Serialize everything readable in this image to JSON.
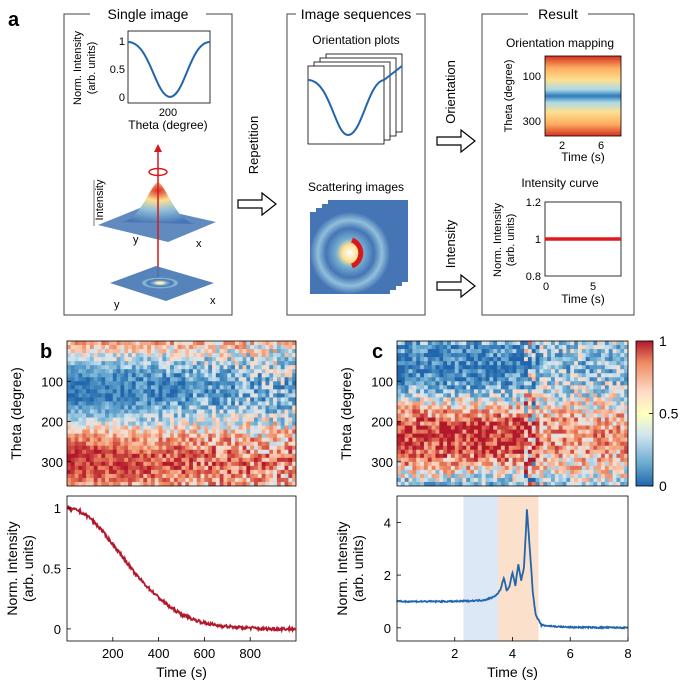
{
  "panel_labels": {
    "a": "a",
    "b": "b",
    "c": "c"
  },
  "panel_a": {
    "single_image": {
      "header": "Single image",
      "inset_ylabel_1": "Norm. Intensity",
      "inset_ylabel_2": "(arb. units)",
      "inset_xlabel": "Theta (degree)",
      "inset_yticks": [
        "1",
        "0.5",
        "0"
      ],
      "inset_xtick": "200",
      "surface_zlabel": "Intensity",
      "axis_x": "x",
      "axis_y": "y"
    },
    "arrow_repetition": "Repetition",
    "image_sequences": {
      "header": "Image sequences",
      "orientation_plots": "Orientation plots",
      "scattering_images": "Scattering images"
    },
    "arrow_orientation": "Orientation",
    "arrow_intensity": "Intensity",
    "result": {
      "header": "Result",
      "mapping_title": "Orientation mapping",
      "mapping_ylabel": "Theta (degree)",
      "mapping_yticks": [
        "100",
        "300"
      ],
      "mapping_xticks": [
        "2",
        "6"
      ],
      "mapping_xlabel": "Time (s)",
      "curve_title": "Intensity curve",
      "curve_ylabel_1": "Norm. Intensity",
      "curve_ylabel_2": "(arb. units)",
      "curve_yticks": [
        "1.2",
        "1",
        "0.8"
      ],
      "curve_xticks": [
        "0",
        "5"
      ],
      "curve_xlabel": "Time (s)"
    }
  },
  "colors": {
    "curve_red": "#b2182b",
    "curve_blue": "#2166ac",
    "marker_red": "#e31a1c",
    "shade_blue": "#dce8f5",
    "shade_orange": "#fbe0cc",
    "cmap_low": "#2c7bb6",
    "cmap_mid": "#ffffbf",
    "cmap_high": "#d7191c"
  },
  "chart_data": [
    {
      "id": "b-heatmap",
      "type": "heatmap",
      "ylabel": "Theta (degree)",
      "yticks": [
        100,
        200,
        300
      ],
      "ylim": [
        0,
        360
      ],
      "xlim": [
        0,
        1000
      ],
      "description_values": {
        "low_band_theta": 120,
        "high_band_theta": 300
      }
    },
    {
      "id": "b-intensity",
      "type": "line",
      "xlabel": "Time (s)",
      "ylabel": "Norm. Intensity\n(arb. units)",
      "xticks": [
        200,
        400,
        600,
        800
      ],
      "yticks": [
        0,
        0.5,
        1
      ],
      "xlim": [
        0,
        1000
      ],
      "ylim": [
        -0.1,
        1.1
      ],
      "x": [
        0,
        50,
        100,
        150,
        200,
        250,
        300,
        350,
        400,
        450,
        500,
        550,
        600,
        650,
        700,
        750,
        800,
        850,
        900,
        950,
        1000
      ],
      "y": [
        1.0,
        0.98,
        0.92,
        0.82,
        0.7,
        0.58,
        0.45,
        0.35,
        0.26,
        0.18,
        0.12,
        0.08,
        0.05,
        0.03,
        0.02,
        0.01,
        0.01,
        0.0,
        0.0,
        0.0,
        0.0
      ]
    },
    {
      "id": "c-heatmap",
      "type": "heatmap",
      "ylabel": "Theta (degree)",
      "yticks": [
        100,
        200,
        300
      ],
      "ylim": [
        0,
        360
      ],
      "xlim": [
        0,
        8
      ]
    },
    {
      "id": "c-intensity",
      "type": "line",
      "xlabel": "Time (s)",
      "ylabel": "Norm. Intensity\n(arb. units)",
      "xticks": [
        2,
        4,
        6,
        8
      ],
      "yticks": [
        0,
        2,
        4
      ],
      "xlim": [
        0,
        8
      ],
      "ylim": [
        -0.5,
        5
      ],
      "shaded_regions": [
        {
          "from": 2.3,
          "to": 3.5,
          "color": "blue"
        },
        {
          "from": 3.5,
          "to": 4.9,
          "color": "orange"
        }
      ],
      "x": [
        0,
        0.5,
        1,
        1.5,
        2,
        2.5,
        3,
        3.3,
        3.5,
        3.6,
        3.7,
        3.8,
        3.9,
        4.0,
        4.1,
        4.2,
        4.3,
        4.4,
        4.5,
        4.6,
        4.7,
        4.8,
        5.0,
        5.5,
        6,
        6.5,
        7,
        7.5,
        8
      ],
      "y": [
        1.0,
        1.0,
        1.0,
        1.0,
        1.0,
        1.02,
        1.05,
        1.15,
        1.3,
        1.5,
        1.9,
        1.4,
        1.6,
        2.1,
        1.6,
        2.4,
        1.8,
        2.3,
        4.5,
        3.0,
        1.4,
        0.5,
        0.1,
        0.05,
        0.02,
        0.02,
        0.01,
        0.01,
        0.0
      ]
    },
    {
      "id": "colorbar",
      "type": "heatmap",
      "ticks": [
        "1",
        "0.5",
        "0"
      ]
    }
  ]
}
